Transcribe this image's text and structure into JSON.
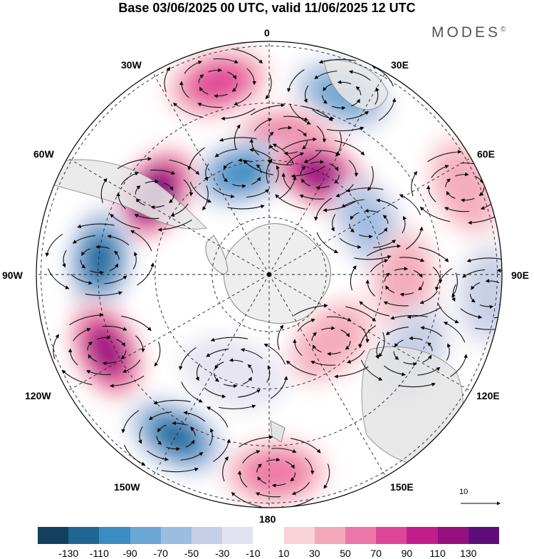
{
  "title": "Base 03/06/2025 00 UTC, valid 11/06/2025 12 UTC",
  "brand": {
    "name": "MODES",
    "mark": "©"
  },
  "longitude_labels": {
    "lon_0": "0",
    "lon_30e": "30E",
    "lon_60e": "60E",
    "lon_90e": "90E",
    "lon_120e": "120E",
    "lon_150e": "150E",
    "lon_180": "180",
    "lon_150w": "150W",
    "lon_120w": "120W",
    "lon_90w": "90W",
    "lon_60w": "60W",
    "lon_30w": "30W"
  },
  "vector_scale": {
    "label": "10"
  },
  "colorbar": {
    "colors": [
      "#14405f",
      "#1f6695",
      "#3a8cc2",
      "#6aa7d2",
      "#9cbde1",
      "#c5cee6",
      "#e3e2f0",
      "#ffffff",
      "#f9d3d8",
      "#f4a9ba",
      "#ec77a6",
      "#de4698",
      "#c21d8c",
      "#951180",
      "#5e0e78"
    ],
    "ticks": [
      "-130",
      "-110",
      "-90",
      "-70",
      "-50",
      "-30",
      "-10",
      "10",
      "30",
      "50",
      "70",
      "90",
      "110",
      "130"
    ]
  },
  "map": {
    "projection": "south-polar-stereographic",
    "field": "anomaly",
    "anomalies": [
      {
        "sign": "pos",
        "level": 4,
        "lon": -15,
        "r": 0.85
      },
      {
        "sign": "neg",
        "level": 4,
        "lon": 22,
        "r": 0.83
      },
      {
        "sign": "pos",
        "level": 3,
        "lon": 8,
        "r": 0.58
      },
      {
        "sign": "neg",
        "level": 5,
        "lon": -15,
        "r": 0.45
      },
      {
        "sign": "pos",
        "level": 6,
        "lon": 27,
        "r": 0.48
      },
      {
        "sign": "pos",
        "level": 7,
        "lon": -55,
        "r": 0.6
      },
      {
        "sign": "neg",
        "level": 6,
        "lon": -85,
        "r": 0.73
      },
      {
        "sign": "neg",
        "level": 3,
        "lon": 63,
        "r": 0.48
      },
      {
        "sign": "pos",
        "level": 2,
        "lon": 66,
        "r": 0.92
      },
      {
        "sign": "pos",
        "level": 2,
        "lon": 93,
        "r": 0.58
      },
      {
        "sign": "neg",
        "level": 2,
        "lon": 95,
        "r": 0.95
      },
      {
        "sign": "pos",
        "level": 6,
        "lon": -115,
        "r": 0.77
      },
      {
        "sign": "neg",
        "level": 6,
        "lon": -150,
        "r": 0.8
      },
      {
        "sign": "pos",
        "level": 3,
        "lon": 178,
        "r": 0.85
      },
      {
        "sign": "neg",
        "level": 2,
        "lon": 118,
        "r": 0.7
      },
      {
        "sign": "pos",
        "level": 2,
        "lon": 137,
        "r": 0.39
      },
      {
        "sign": "neg",
        "level": 1,
        "lon": -160,
        "r": 0.45
      }
    ]
  }
}
